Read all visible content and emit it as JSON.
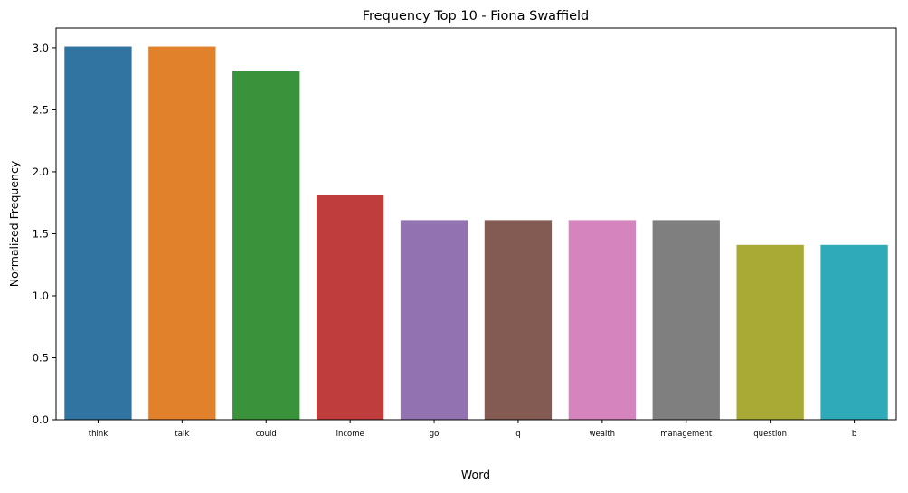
{
  "chart_data": {
    "type": "bar",
    "title": "Frequency Top 10 - Fiona Swaffield",
    "xlabel": "Word",
    "ylabel": "Normalized Frequency",
    "categories": [
      "think",
      "talk",
      "could",
      "income",
      "go",
      "q",
      "wealth",
      "management",
      "question",
      "b"
    ],
    "values": [
      3.01,
      3.01,
      2.81,
      1.81,
      1.61,
      1.61,
      1.61,
      1.61,
      1.41,
      1.41
    ],
    "colors": [
      "#3274a1",
      "#e1812c",
      "#3a923a",
      "#c03d3e",
      "#9372b2",
      "#845b53",
      "#d684bd",
      "#7f7f7f",
      "#a9aa35",
      "#2eaab8"
    ],
    "ylim": [
      0,
      3.16
    ],
    "yticks": [
      0.0,
      0.5,
      1.0,
      1.5,
      2.0,
      2.5,
      3.0
    ],
    "ytick_labels": [
      "0.0",
      "0.5",
      "1.0",
      "1.5",
      "2.0",
      "2.5",
      "3.0"
    ],
    "grid": false,
    "legend": "none"
  }
}
